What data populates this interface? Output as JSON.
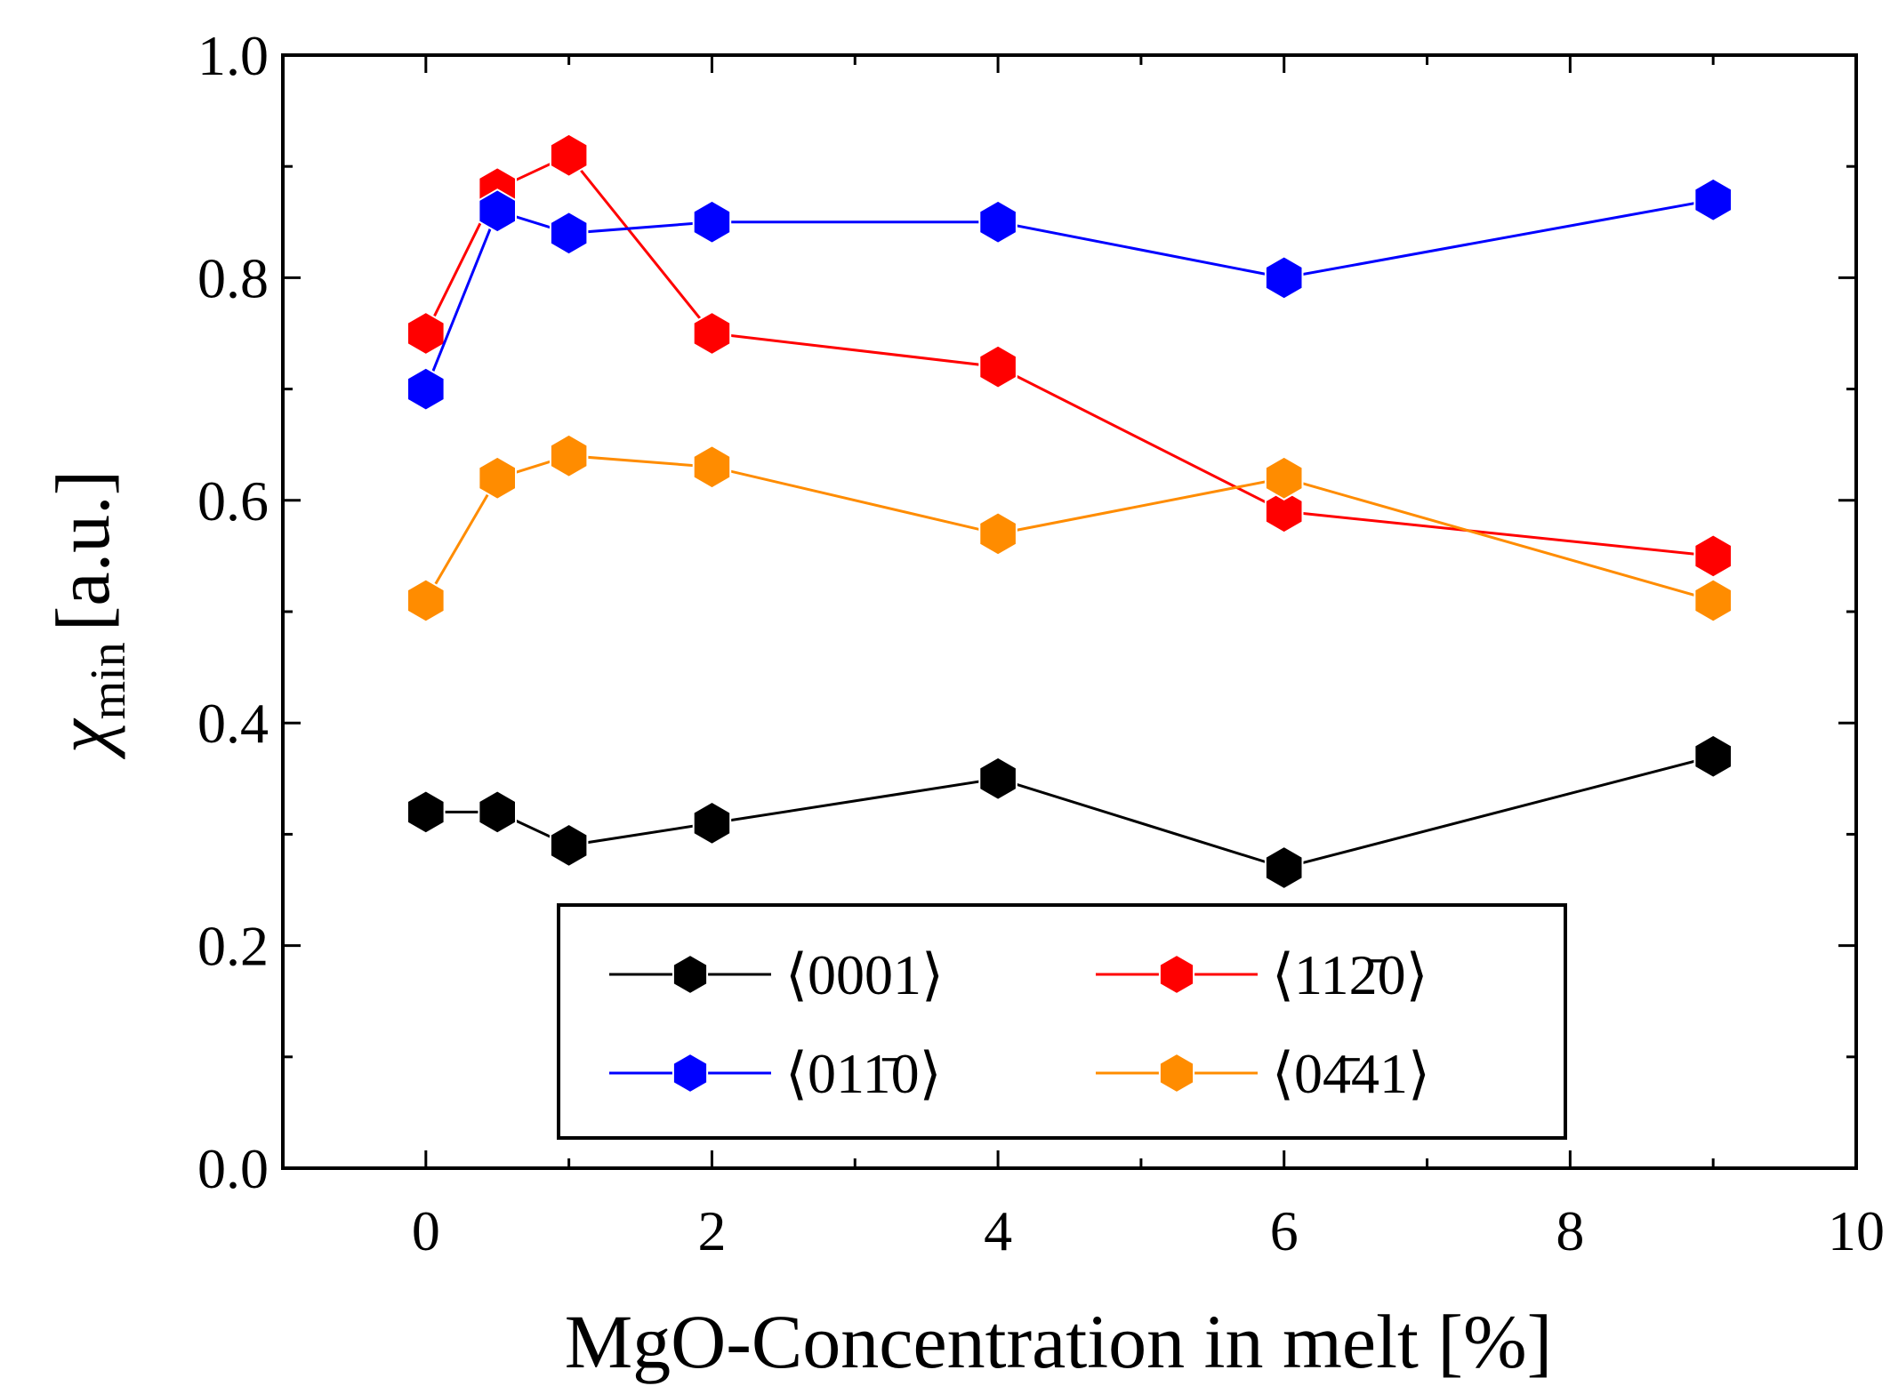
{
  "chart_data": {
    "type": "line",
    "title": "",
    "xlabel": "MgO-Concentration in melt [%]",
    "ylabel_main": "χ",
    "ylabel_sub": "min",
    "ylabel_unit": "[a.u.]",
    "xlim": [
      -1,
      10
    ],
    "ylim": [
      0,
      1
    ],
    "xticks": [
      0,
      2,
      4,
      6,
      8,
      10
    ],
    "yticks": [
      0.0,
      0.2,
      0.4,
      0.6,
      0.8,
      1.0
    ],
    "xtick_labels": [
      "0",
      "2",
      "4",
      "6",
      "8",
      "10"
    ],
    "ytick_labels": [
      "0.0",
      "0.2",
      "0.4",
      "0.6",
      "0.8",
      "1.0"
    ],
    "x": [
      0,
      0.5,
      1,
      2,
      4,
      6,
      9
    ],
    "legend_position": "lower-center",
    "series": [
      {
        "name": "⟨0001⟩",
        "color": "#000000",
        "values": [
          0.32,
          0.32,
          0.29,
          0.31,
          0.35,
          0.27,
          0.37
        ]
      },
      {
        "name": "⟨112̄0⟩",
        "color": "#ff0000",
        "values": [
          0.75,
          0.88,
          0.91,
          0.75,
          0.72,
          0.59,
          0.55
        ]
      },
      {
        "name": "⟨011̄0⟩",
        "color": "#0000ff",
        "values": [
          0.7,
          0.86,
          0.84,
          0.85,
          0.85,
          0.8,
          0.87
        ]
      },
      {
        "name": "⟨04̄41⟩",
        "color": "#ff8c00",
        "values": [
          0.51,
          0.62,
          0.64,
          0.63,
          0.57,
          0.62,
          0.51
        ]
      }
    ]
  }
}
